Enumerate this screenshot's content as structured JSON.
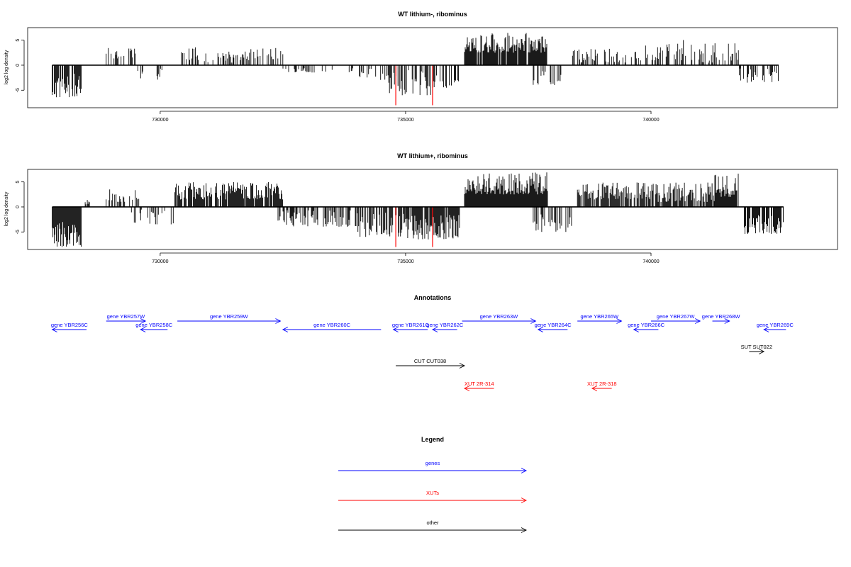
{
  "chart_data": [
    {
      "type": "bar",
      "title": "WT lithium-, ribominus",
      "xlabel": "",
      "ylabel": "log2 log density",
      "xlim": [
        727300,
        743800
      ],
      "ylim": [
        -8.5,
        7.5
      ],
      "yticks": [
        -5,
        0,
        5
      ],
      "xticks": [
        730000,
        735000,
        740000
      ],
      "ytick_labels": [
        "-5",
        "0",
        "5"
      ],
      "xtick_labels": [
        "730000",
        "735000",
        "740000"
      ],
      "grid": false,
      "color": "#000000",
      "highlight_color": "#ff0000",
      "segments": [
        {
          "start": 727800,
          "end": 728400,
          "lo": -6.5,
          "hi": -1.5,
          "density": 0.8
        },
        {
          "start": 728900,
          "end": 729500,
          "lo": 1.0,
          "hi": 3.5,
          "density": 0.35
        },
        {
          "start": 729500,
          "end": 730100,
          "lo": -3.0,
          "hi": -0.5,
          "density": 0.3
        },
        {
          "start": 730300,
          "end": 730800,
          "lo": 1.0,
          "hi": 4.0,
          "density": 0.35
        },
        {
          "start": 730900,
          "end": 731500,
          "lo": 0.5,
          "hi": 2.5,
          "density": 0.25
        },
        {
          "start": 731300,
          "end": 732500,
          "lo": 1.0,
          "hi": 3.5,
          "density": 0.4
        },
        {
          "start": 732400,
          "end": 733300,
          "lo": -1.5,
          "hi": -0.5,
          "density": 0.3
        },
        {
          "start": 733300,
          "end": 734000,
          "lo": -1.5,
          "hi": -0.5,
          "density": 0.15
        },
        {
          "start": 734000,
          "end": 734600,
          "lo": -3.0,
          "hi": -0.5,
          "density": 0.3
        },
        {
          "start": 734600,
          "end": 735600,
          "lo": -6.0,
          "hi": -1.0,
          "density": 0.6
        },
        {
          "start": 735600,
          "end": 736100,
          "lo": -4.5,
          "hi": -0.5,
          "density": 0.45
        },
        {
          "start": 736200,
          "end": 737900,
          "lo": 2.5,
          "hi": 6.5,
          "density": 0.95
        },
        {
          "start": 737600,
          "end": 738200,
          "lo": -4.0,
          "hi": -1.0,
          "density": 0.3
        },
        {
          "start": 738400,
          "end": 739500,
          "lo": 0.5,
          "hi": 3.5,
          "density": 0.35
        },
        {
          "start": 739600,
          "end": 740400,
          "lo": 0.5,
          "hi": 4.5,
          "density": 0.4
        },
        {
          "start": 740400,
          "end": 741000,
          "lo": 1.0,
          "hi": 5.5,
          "density": 0.4
        },
        {
          "start": 741000,
          "end": 741800,
          "lo": 0.5,
          "hi": 4.5,
          "density": 0.4
        },
        {
          "start": 741800,
          "end": 742600,
          "lo": -3.5,
          "hi": -0.5,
          "density": 0.45
        }
      ],
      "highlights": [
        {
          "x": 734800,
          "y": -8.0
        },
        {
          "x": 735550,
          "y": -8.0
        }
      ]
    },
    {
      "type": "bar",
      "title": "WT lithium+, ribominus",
      "xlabel": "",
      "ylabel": "log2 log density",
      "xlim": [
        727300,
        743800
      ],
      "ylim": [
        -8.5,
        7.5
      ],
      "yticks": [
        -5,
        0,
        5
      ],
      "xticks": [
        730000,
        735000,
        740000
      ],
      "ytick_labels": [
        "-5",
        "0",
        "5"
      ],
      "xtick_labels": [
        "730000",
        "735000",
        "740000"
      ],
      "grid": false,
      "color": "#000000",
      "highlight_color": "#ff0000",
      "segments": [
        {
          "start": 727800,
          "end": 728400,
          "lo": -8.0,
          "hi": -3.0,
          "density": 1.0
        },
        {
          "start": 728400,
          "end": 728600,
          "lo": 0.5,
          "hi": 2.0,
          "density": 0.3
        },
        {
          "start": 728900,
          "end": 729600,
          "lo": 1.0,
          "hi": 3.5,
          "density": 0.4
        },
        {
          "start": 729400,
          "end": 730300,
          "lo": -3.5,
          "hi": -0.5,
          "density": 0.4
        },
        {
          "start": 730300,
          "end": 732500,
          "lo": 1.5,
          "hi": 5.0,
          "density": 0.85
        },
        {
          "start": 732400,
          "end": 734000,
          "lo": -4.0,
          "hi": -0.5,
          "density": 0.6
        },
        {
          "start": 734000,
          "end": 735000,
          "lo": -6.0,
          "hi": -1.0,
          "density": 0.7
        },
        {
          "start": 735000,
          "end": 736100,
          "lo": -6.5,
          "hi": -1.5,
          "density": 0.85
        },
        {
          "start": 736200,
          "end": 737900,
          "lo": 2.5,
          "hi": 7.0,
          "density": 1.0
        },
        {
          "start": 737600,
          "end": 738400,
          "lo": -5.0,
          "hi": -1.0,
          "density": 0.5
        },
        {
          "start": 738500,
          "end": 739900,
          "lo": 1.5,
          "hi": 5.0,
          "density": 0.85
        },
        {
          "start": 739900,
          "end": 741300,
          "lo": 1.0,
          "hi": 5.0,
          "density": 0.7
        },
        {
          "start": 741300,
          "end": 741800,
          "lo": 2.0,
          "hi": 7.0,
          "density": 0.9
        },
        {
          "start": 741900,
          "end": 742700,
          "lo": -5.5,
          "hi": -1.5,
          "density": 0.85
        }
      ],
      "highlights": [
        {
          "x": 734800,
          "y": -8.0
        },
        {
          "x": 735550,
          "y": -8.0
        }
      ]
    }
  ],
  "annotations": {
    "title": "Annotations",
    "xlim": [
      727300,
      743800
    ],
    "features": [
      {
        "label": "gene YBR256C",
        "start": 727800,
        "end": 728500,
        "strand": "-",
        "kind": "gene",
        "row": 1
      },
      {
        "label": "gene YBR257W",
        "start": 728900,
        "end": 729700,
        "strand": "+",
        "kind": "gene",
        "row": 0
      },
      {
        "label": "gene YBR258C",
        "start": 729600,
        "end": 730150,
        "strand": "-",
        "kind": "gene",
        "row": 1
      },
      {
        "label": "gene YBR259W",
        "start": 730350,
        "end": 732450,
        "strand": "+",
        "kind": "gene",
        "row": 0
      },
      {
        "label": "gene YBR260C",
        "start": 732500,
        "end": 734500,
        "strand": "-",
        "kind": "gene",
        "row": 1
      },
      {
        "label": "gene YBR261C",
        "start": 734750,
        "end": 735450,
        "strand": "-",
        "kind": "gene",
        "row": 1
      },
      {
        "label": "gene YBR262C",
        "start": 735550,
        "end": 736050,
        "strand": "-",
        "kind": "gene",
        "row": 1
      },
      {
        "label": "gene YBR263W",
        "start": 736150,
        "end": 737650,
        "strand": "+",
        "kind": "gene",
        "row": 0
      },
      {
        "label": "gene YBR264C",
        "start": 737700,
        "end": 738300,
        "strand": "-",
        "kind": "gene",
        "row": 1
      },
      {
        "label": "gene YBR265W",
        "start": 738500,
        "end": 739400,
        "strand": "+",
        "kind": "gene",
        "row": 0
      },
      {
        "label": "gene YBR266C",
        "start": 739650,
        "end": 740150,
        "strand": "-",
        "kind": "gene",
        "row": 1
      },
      {
        "label": "gene YBR267W",
        "start": 740000,
        "end": 741000,
        "strand": "+",
        "kind": "gene",
        "row": 0
      },
      {
        "label": "gene YBR268W",
        "start": 741250,
        "end": 741600,
        "strand": "+",
        "kind": "gene",
        "row": 0
      },
      {
        "label": "gene YBR269C",
        "start": 742300,
        "end": 742750,
        "strand": "-",
        "kind": "gene",
        "row": 1
      },
      {
        "label": "SUT SUT022",
        "start": 742000,
        "end": 742300,
        "strand": "+",
        "kind": "other",
        "row": 2
      },
      {
        "label": "CUT CUT038",
        "start": 734800,
        "end": 736200,
        "strand": "+",
        "kind": "other",
        "row": 3
      },
      {
        "label": "XUT 2R-314",
        "start": 736200,
        "end": 736800,
        "strand": "-",
        "kind": "xut",
        "row": 4
      },
      {
        "label": "XUT 2R-318",
        "start": 738800,
        "end": 739200,
        "strand": "-",
        "kind": "xut",
        "row": 4
      }
    ]
  },
  "legend": {
    "title": "Legend",
    "items": [
      {
        "label": "genes",
        "color": "#0000ff"
      },
      {
        "label": "XUTs",
        "color": "#ff0000"
      },
      {
        "label": "other",
        "color": "#000000"
      }
    ]
  },
  "colors": {
    "gene": "#0000ff",
    "xut": "#ff0000",
    "other": "#000000",
    "axis": "#000000"
  }
}
